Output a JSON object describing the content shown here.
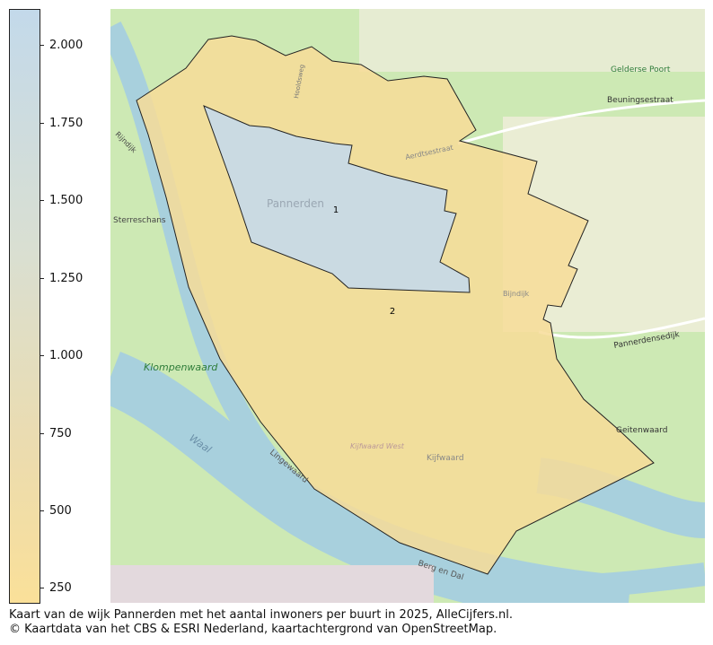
{
  "legend": {
    "ticks": [
      "2.000",
      "1.750",
      "1.500",
      "1.250",
      "1.000",
      "750",
      "500",
      "250"
    ],
    "colors": {
      "max": "#c3d9ea",
      "min": "#fae099"
    }
  },
  "map": {
    "regions": [
      {
        "label": "1",
        "fill": "#c5d9ea"
      },
      {
        "label": "2",
        "fill": "#f7dc98"
      }
    ],
    "place_labels": [
      "Pannerden",
      "Sterreschans",
      "Klompenwaard",
      "Gelderse Poort",
      "Waal",
      "Lingewaard",
      "Kijfwaard",
      "Kijfwaard West",
      "Geitenwaard",
      "Beuningsestraat",
      "Aerdtsestraat",
      "Rijndijk",
      "Pannerdensedijk",
      "Berg en Dal",
      "Bijndijk",
      "Hooldsweg"
    ]
  },
  "caption": {
    "line1": "Kaart van de wijk Pannerden met het aantal inwoners per buurt in 2025, AlleCijfers.nl.",
    "line2": "© Kaartdata van het CBS & ESRI Nederland, kaartachtergrond van OpenStreetMap."
  }
}
